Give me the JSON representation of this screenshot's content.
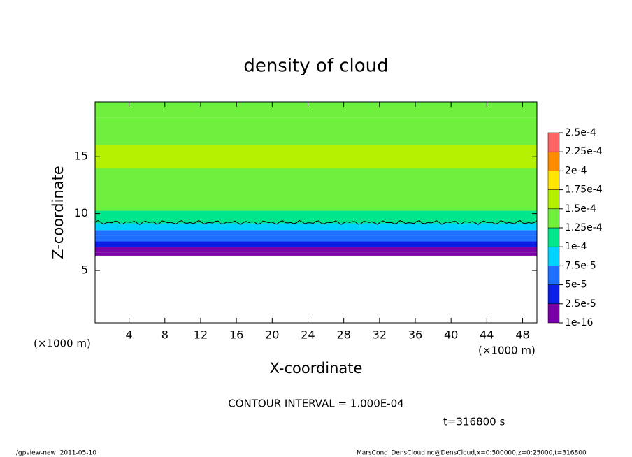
{
  "chart_data": {
    "type": "contour",
    "title": "density of cloud",
    "x_label": "X-coordinate",
    "y_label": "Z-coordinate",
    "x_unit": "(×1000 m)",
    "y_unit": "(×1000 m)",
    "xlim": [
      0.2,
      49.6
    ],
    "xticks": [
      4,
      8,
      12,
      16,
      20,
      24,
      28,
      32,
      36,
      40,
      44,
      48
    ],
    "ylim": [
      0.4,
      19.8
    ],
    "yticks": [
      5,
      10,
      15
    ],
    "z": [
      6.3,
      6.8,
      7.3,
      7.8,
      8.3,
      8.8,
      9.5,
      11,
      13,
      15,
      17,
      19.8
    ],
    "values": [
      1e-05,
      2e-05,
      3.5e-05,
      5.5e-05,
      7e-05,
      8.5e-05,
      0.00011,
      0.000135,
      0.000145,
      0.00015,
      0.000145,
      0.00014
    ],
    "contour_level": 0.0001,
    "colorbar_ticks": [
      1e-16,
      {
        "value": 2.5e-05,
        "label": "2.5e-5"
      },
      {
        "value": 5e-05,
        "label": "5e-5"
      },
      {
        "value": 7.5e-05,
        "label": "7.5e-5"
      },
      {
        "value": 0.0001,
        "label": "1e-4"
      },
      {
        "value": 0.000125,
        "label": "1.25e-4"
      },
      {
        "value": 0.00015,
        "label": "1.5e-4"
      },
      {
        "value": 0.000175,
        "label": "1.75e-4"
      },
      {
        "value": 0.0002,
        "label": "2e-4"
      },
      {
        "value": 0.000225,
        "label": "2.25e-4"
      },
      {
        "value": 0.00025,
        "label": "2.5e-4"
      }
    ],
    "colors": [
      "#7a00a8",
      "#0a1ee6",
      "#1e6eff",
      "#00d2ff",
      "#00e68c",
      "#6ef03c",
      "#b4f000",
      "#ffe600",
      "#ff8c00",
      "#ff6464"
    ],
    "contour_text": "CONTOUR INTERVAL = 1.000E-04",
    "time_text": "t=316800 s",
    "footer_left": "./gpview-new  2011-05-10",
    "footer_right": "MarsCond_DensCloud.nc@DensCloud,x=0:500000,z=0:25000,t=316800"
  }
}
